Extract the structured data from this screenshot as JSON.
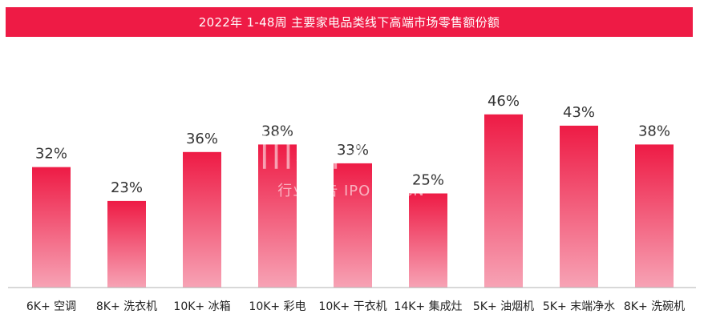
{
  "colors": {
    "title_bg": "#ee1b45",
    "bar_top": "#ee1b45",
    "bar_bottom": "#f7a3b5",
    "baseline": "#b0b0b0"
  },
  "chart_data": {
    "type": "bar",
    "title": "2022年 1-48周 主要家电品类线下高端市场零售额份额",
    "categories": [
      "6K+ 空调",
      "8K+ 洗衣机",
      "10K+ 冰箱",
      "10K+ 彩电",
      "10K+ 干衣机",
      "14K+ 集成灶",
      "5K+ 油烟机",
      "5K+ 末端净水",
      "8K+ 洗碗机"
    ],
    "values": [
      32,
      23,
      36,
      38,
      33,
      25,
      46,
      43,
      38
    ],
    "value_labels": [
      "32%",
      "23%",
      "36%",
      "38%",
      "33%",
      "25%",
      "46%",
      "43%",
      "38%"
    ],
    "unit": "%",
    "ylim": [
      0,
      50
    ],
    "grid": false,
    "xlabel": "",
    "ylabel": ""
  },
  "watermark": {
    "main": "|||洋|尤购家",
    "sub": "行业报告 IPOIPO.CN"
  }
}
